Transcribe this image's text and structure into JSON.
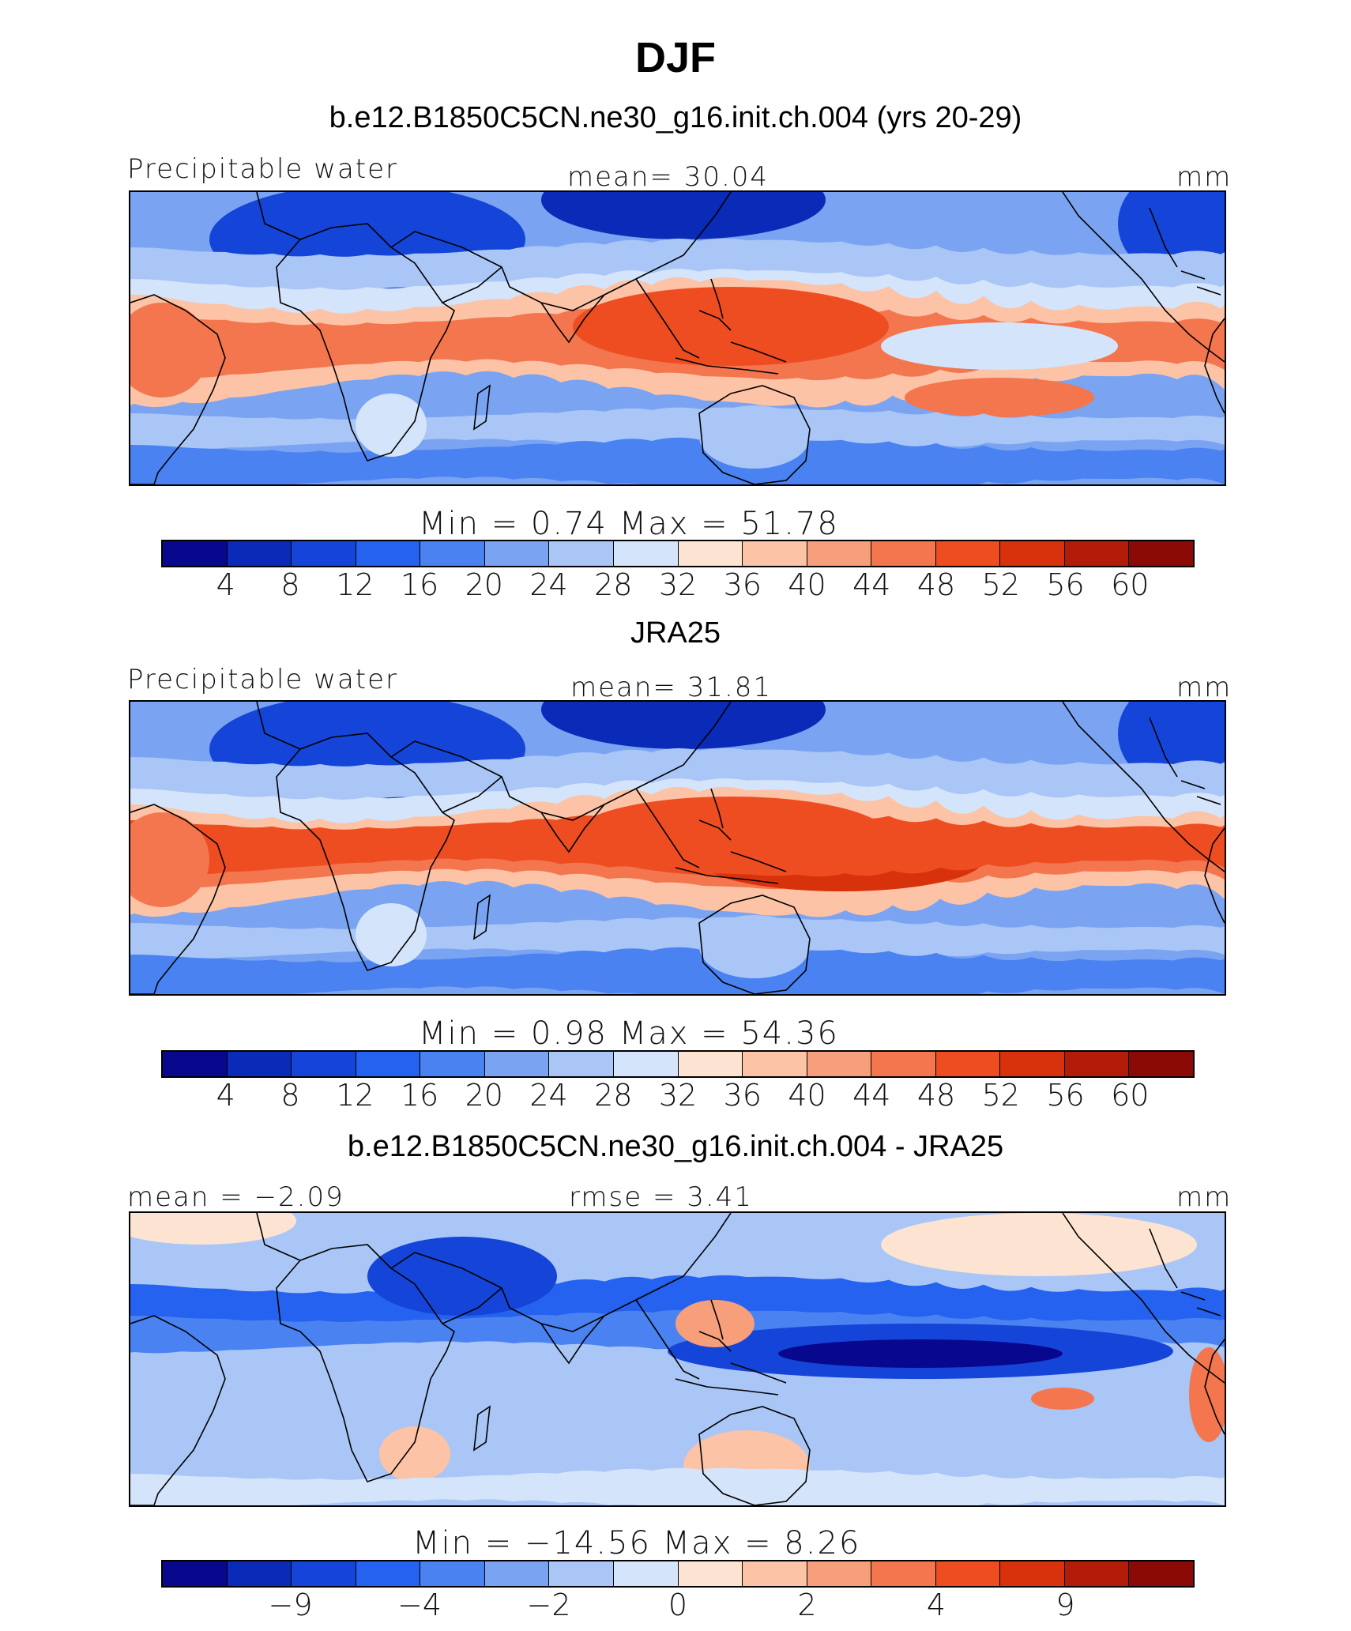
{
  "title": "DJF",
  "palette": [
    "#08088f",
    "#0a2ab8",
    "#1445d8",
    "#2462ef",
    "#4a82f2",
    "#7aa4f2",
    "#a9c6f6",
    "#d4e4fa",
    "#fde4d2",
    "#fcc3a6",
    "#f79f7a",
    "#f3764f",
    "#ee4d22",
    "#d8320c",
    "#b41c0a",
    "#8c0a05"
  ],
  "panels": [
    {
      "subtitle": "b.e12.B1850C5CN.ne30_g16.init.ch.004 (yrs 20-29)",
      "left_label": "Precipitable water",
      "center_label": "mean=   30.04",
      "right_label": "mm",
      "minmax": "Min =     0.74  Max =    51.78",
      "ticks": [
        "4",
        "8",
        "12",
        "16",
        "20",
        "24",
        "28",
        "32",
        "36",
        "40",
        "44",
        "48",
        "52",
        "56",
        "60"
      ],
      "kind": "model"
    },
    {
      "subtitle": "JRA25",
      "left_label": "Precipitable water",
      "center_label": "mean=   31.81",
      "right_label": "mm",
      "minmax": "Min =     0.98  Max =    54.36",
      "ticks": [
        "4",
        "8",
        "12",
        "16",
        "20",
        "24",
        "28",
        "32",
        "36",
        "40",
        "44",
        "48",
        "52",
        "56",
        "60"
      ],
      "kind": "obs"
    },
    {
      "subtitle": "b.e12.B1850C5CN.ne30_g16.init.ch.004 - JRA25",
      "left_label": "mean =  −2.09",
      "center_label": "rmse =    3.41",
      "right_label": "mm",
      "minmax": "Min = −14.56  Max =    8.26",
      "ticks": [
        "−9",
        "−4",
        "−2",
        "0",
        "2",
        "4",
        "9"
      ],
      "kind": "diff"
    }
  ]
}
